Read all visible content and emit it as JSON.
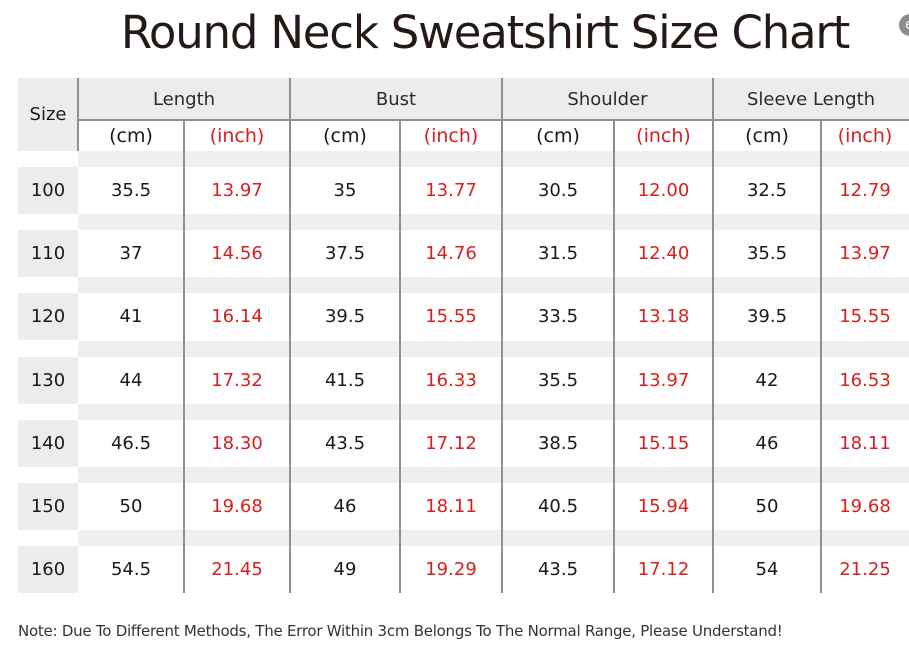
{
  "title": "Round Neck Sweatshirt Size Chart",
  "corner_mark": "e",
  "table": {
    "size_header": "Size",
    "groups": [
      "Length",
      "Bust",
      "Shoulder",
      "Sleeve Length"
    ],
    "units": [
      "(cm)",
      "(inch)",
      "(cm)",
      "(inch)",
      "(cm)",
      "(inch)",
      "(cm)",
      "(inch)"
    ],
    "rows": [
      {
        "size": "100",
        "values": [
          "35.5",
          "13.97",
          "35",
          "13.77",
          "30.5",
          "12.00",
          "32.5",
          "12.79"
        ]
      },
      {
        "size": "110",
        "values": [
          "37",
          "14.56",
          "37.5",
          "14.76",
          "31.5",
          "12.40",
          "35.5",
          "13.97"
        ]
      },
      {
        "size": "120",
        "values": [
          "41",
          "16.14",
          "39.5",
          "15.55",
          "33.5",
          "13.18",
          "39.5",
          "15.55"
        ]
      },
      {
        "size": "130",
        "values": [
          "44",
          "17.32",
          "41.5",
          "16.33",
          "35.5",
          "13.97",
          "42",
          "16.53"
        ]
      },
      {
        "size": "140",
        "values": [
          "46.5",
          "18.30",
          "43.5",
          "17.12",
          "38.5",
          "15.15",
          "46",
          "18.11"
        ]
      },
      {
        "size": "150",
        "values": [
          "50",
          "19.68",
          "46",
          "18.11",
          "40.5",
          "15.94",
          "50",
          "19.68"
        ]
      },
      {
        "size": "160",
        "values": [
          "54.5",
          "21.45",
          "49",
          "19.29",
          "43.5",
          "17.12",
          "54",
          "21.25"
        ]
      }
    ]
  },
  "note": "Note: Due To Different Methods, The Error Within 3cm Belongs To The Normal Range, Please Understand!",
  "colors": {
    "inch_text": "#d81e1e",
    "header_bg": "#ececec",
    "grid": "#8f8f8f"
  }
}
